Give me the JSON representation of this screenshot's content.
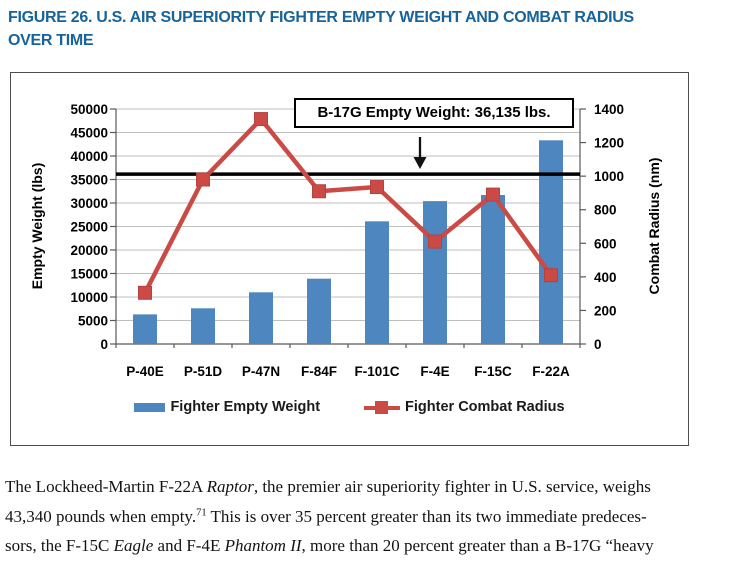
{
  "figure": {
    "label_lines": [
      "FIGURE 26. U.S. AIR SUPERIORITY FIGHTER EMPTY WEIGHT AND COMBAT RADIUS",
      "OVER TIME"
    ]
  },
  "colors": {
    "title_blue": "#17639C",
    "bar_blue": "#4E86C0",
    "line_red": "#CB4A45",
    "marker_edge": "#B4423D",
    "gridline": "#BFBFBF",
    "axis": "#595959",
    "reference_black": "#000000"
  },
  "chart_data": {
    "type": "bar+line",
    "categories": [
      "P-40E",
      "P-51D",
      "P-47N",
      "F-84F",
      "F-101C",
      "F-4E",
      "F-15C",
      "F-22A"
    ],
    "series": [
      {
        "name": "Fighter Empty Weight",
        "type": "bar",
        "axis": "left",
        "values": [
          6300,
          7600,
          11000,
          13900,
          26100,
          30400,
          31700,
          43340
        ]
      },
      {
        "name": "Fighter Combat Radius",
        "type": "line",
        "axis": "right",
        "values": [
          305,
          980,
          1340,
          910,
          935,
          610,
          890,
          410
        ]
      }
    ],
    "left_axis": {
      "label": "Empty Weight (lbs)",
      "min": 0,
      "max": 50000,
      "step": 5000
    },
    "right_axis": {
      "label": "Combat Radius (nm)",
      "min": 0,
      "max": 1400,
      "step": 200
    },
    "reference_line": {
      "axis": "left",
      "value": 36135
    },
    "annotation": {
      "text": "B-17G Empty Weight: 36,135 lbs."
    },
    "legend": [
      {
        "label": "Fighter Empty Weight"
      },
      {
        "label": "Fighter Combat Radius"
      }
    ],
    "grid": true,
    "legend_position": "bottom"
  },
  "paragraph": {
    "lines": [
      [
        {
          "text": "The Lockheed-Martin F-22A "
        },
        {
          "text": "Raptor",
          "style": "italic"
        },
        {
          "text": ", the premier air superiority fighter in U.S. service, weighs"
        }
      ],
      [
        {
          "text": "43,340 pounds when empty."
        },
        {
          "text": "71",
          "style": "sup"
        },
        {
          "text": " This is over 35 percent greater than its two immediate predeces-"
        }
      ],
      [
        {
          "text": "sors, the F-15C "
        },
        {
          "text": "Eagle",
          "style": "italic"
        },
        {
          "text": " and F-4E "
        },
        {
          "text": "Phantom II",
          "style": "italic"
        },
        {
          "text": ", more than 20 percent greater than a B-17G “heavy"
        }
      ]
    ]
  }
}
